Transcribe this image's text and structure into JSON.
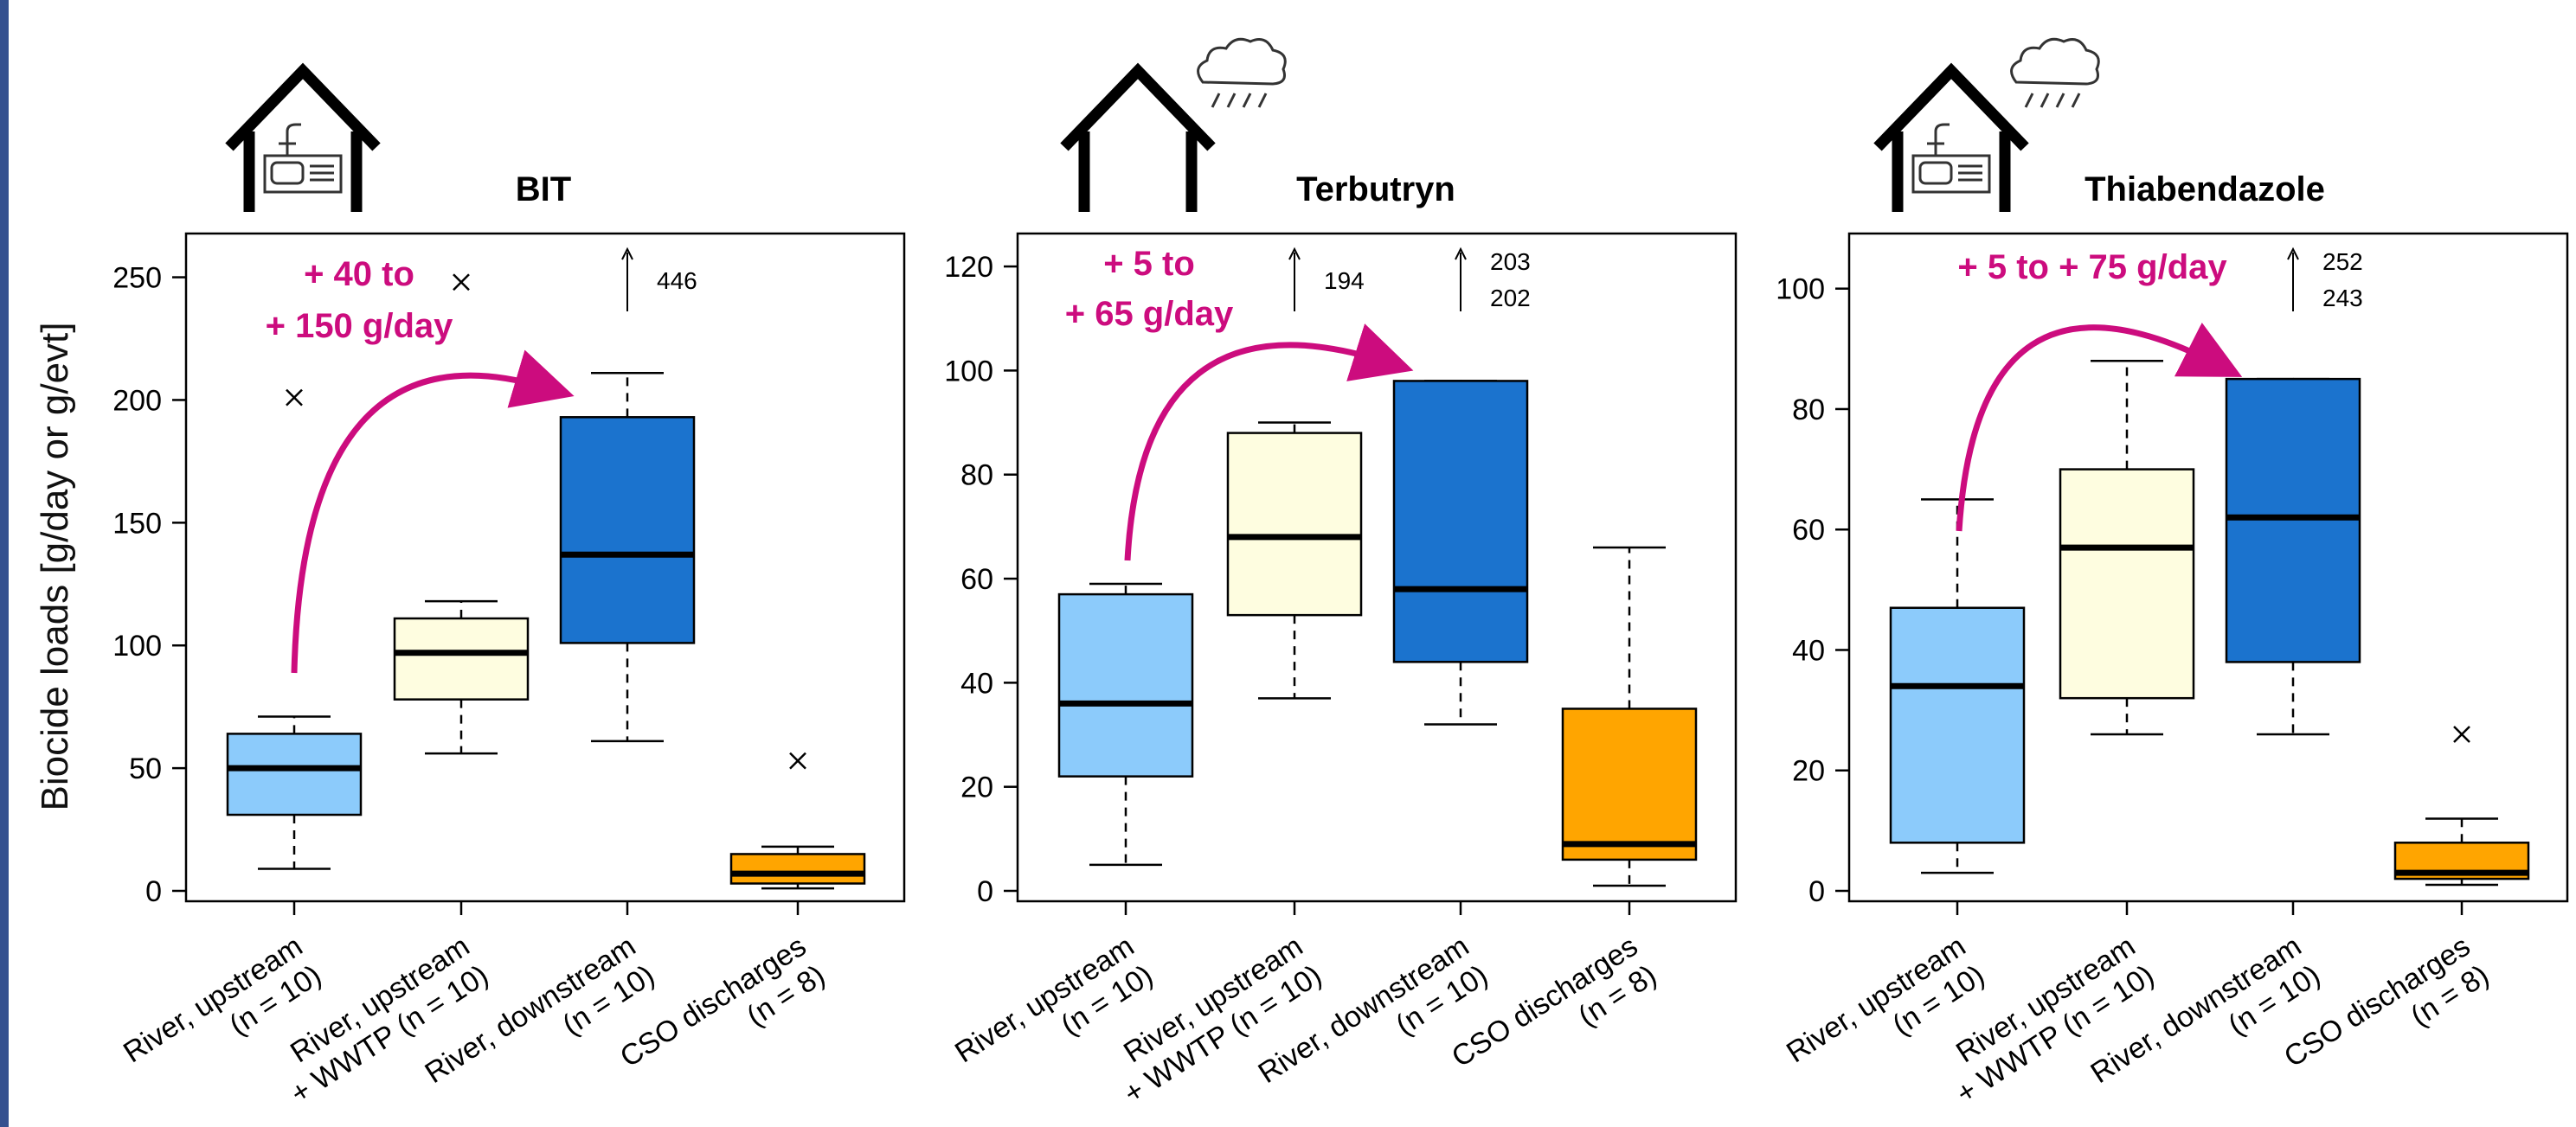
{
  "colors": {
    "river_upstream": "#8ccbfb",
    "river_upstream_wwtp": "#fefde0",
    "river_downstream": "#1b73ce",
    "cso_discharges": "#ffa500",
    "annotation": "#cc0c7e",
    "accent_bar": "#34508f"
  },
  "icons": [
    "house-sink-icon",
    "house-rain-cloud-icon",
    "house-sink-rain-cloud-icon"
  ],
  "chart_data": {
    "type": "boxplot",
    "ylabel": "Biocide loads [g/day or g/evt]",
    "categories": [
      {
        "line1": "River, upstream",
        "line2": "(n = 10)"
      },
      {
        "line1": "River, upstream",
        "line2": "+ WWTP (n = 10)"
      },
      {
        "line1": "River, downstream",
        "line2": "(n = 10)"
      },
      {
        "line1": "CSO discharges",
        "line2": "(n = 8)"
      }
    ],
    "panels": [
      {
        "title": "BIT",
        "icon": "house-sink-icon",
        "ylim": [
          0,
          265
        ],
        "yticks": [
          0,
          50,
          100,
          150,
          200,
          250
        ],
        "annotation": [
          "+ 40 to",
          "+ 150 g/day"
        ],
        "boxes": [
          {
            "whisker_low": 9,
            "q1": 31,
            "median": 50,
            "q3": 64,
            "whisker_high": 71,
            "outliers": [
              201
            ]
          },
          {
            "whisker_low": 56,
            "q1": 78,
            "median": 97,
            "q3": 111,
            "whisker_high": 118,
            "outliers": [
              248
            ]
          },
          {
            "whisker_low": 61,
            "q1": 101,
            "median": 137,
            "q3": 193,
            "whisker_high": 211,
            "outliers": [],
            "offscale": [
              "446"
            ]
          },
          {
            "whisker_low": 1,
            "q1": 3,
            "median": 7,
            "q3": 15,
            "whisker_high": 18,
            "outliers": [
              53
            ]
          }
        ]
      },
      {
        "title": "Terbutryn",
        "icon": "house-rain-cloud-icon",
        "ylim": [
          0,
          125
        ],
        "yticks": [
          0,
          20,
          40,
          60,
          80,
          100,
          120
        ],
        "annotation": [
          "+ 5 to",
          "+ 65 g/day"
        ],
        "boxes": [
          {
            "whisker_low": 5,
            "q1": 22,
            "median": 36,
            "q3": 57,
            "whisker_high": 59,
            "outliers": []
          },
          {
            "whisker_low": 37,
            "q1": 53,
            "median": 68,
            "q3": 88,
            "whisker_high": 90,
            "outliers": [],
            "offscale": [
              "194"
            ]
          },
          {
            "whisker_low": 32,
            "q1": 44,
            "median": 58,
            "q3": 98,
            "whisker_high": 98,
            "outliers": [],
            "offscale": [
              "203",
              "202"
            ]
          },
          {
            "whisker_low": 1,
            "q1": 6,
            "median": 9,
            "q3": 35,
            "whisker_high": 66,
            "outliers": []
          }
        ]
      },
      {
        "title": "Thiabendazole",
        "icon": "house-sink-rain-cloud-icon",
        "ylim": [
          0,
          108
        ],
        "yticks": [
          0,
          20,
          40,
          60,
          80,
          100
        ],
        "annotation": [
          "+ 5 to + 75 g/day"
        ],
        "boxes": [
          {
            "whisker_low": 3,
            "q1": 8,
            "median": 34,
            "q3": 47,
            "whisker_high": 65,
            "outliers": []
          },
          {
            "whisker_low": 26,
            "q1": 32,
            "median": 57,
            "q3": 70,
            "whisker_high": 88,
            "outliers": []
          },
          {
            "whisker_low": 26,
            "q1": 38,
            "median": 62,
            "q3": 85,
            "whisker_high": 85,
            "outliers": [],
            "offscale": [
              "252",
              "243"
            ]
          },
          {
            "whisker_low": 1,
            "q1": 2,
            "median": 3,
            "q3": 8,
            "whisker_high": 12,
            "outliers": [
              26
            ]
          }
        ]
      }
    ]
  }
}
